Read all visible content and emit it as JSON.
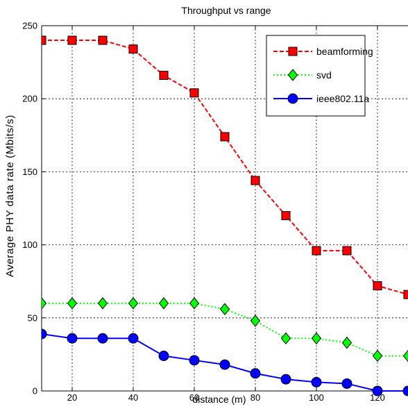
{
  "chart_data": {
    "type": "line",
    "title": "Throughput vs range",
    "xlabel": "distance (m)",
    "ylabel": "Average PHY data rate (Mbits/s)",
    "xlim": [
      10,
      130
    ],
    "ylim": [
      0,
      250
    ],
    "xticks": [
      20,
      40,
      60,
      80,
      100,
      120
    ],
    "yticks": [
      0,
      50,
      100,
      150,
      200,
      250
    ],
    "grid": true,
    "legend_position": "top-right",
    "x": [
      10,
      20,
      30,
      40,
      50,
      60,
      70,
      80,
      90,
      100,
      110,
      120,
      130
    ],
    "series": [
      {
        "name": "beamforming",
        "color": "#ff0000",
        "line_style": "dashed",
        "marker": "square",
        "values": [
          240,
          240,
          240,
          234,
          216,
          204,
          174,
          144,
          120,
          96,
          96,
          72,
          66
        ]
      },
      {
        "name": "svd",
        "color": "#00ff00",
        "line_style": "dotted",
        "marker": "diamond",
        "values": [
          60,
          60,
          60,
          60,
          60,
          60,
          56,
          48,
          36,
          36,
          33,
          24,
          24
        ]
      },
      {
        "name": "ieee802.11a",
        "color": "#0000ff",
        "line_style": "solid",
        "marker": "circle",
        "values": [
          39,
          36,
          36,
          36,
          24,
          21,
          18,
          12,
          8,
          6,
          5,
          0,
          0
        ]
      }
    ]
  }
}
